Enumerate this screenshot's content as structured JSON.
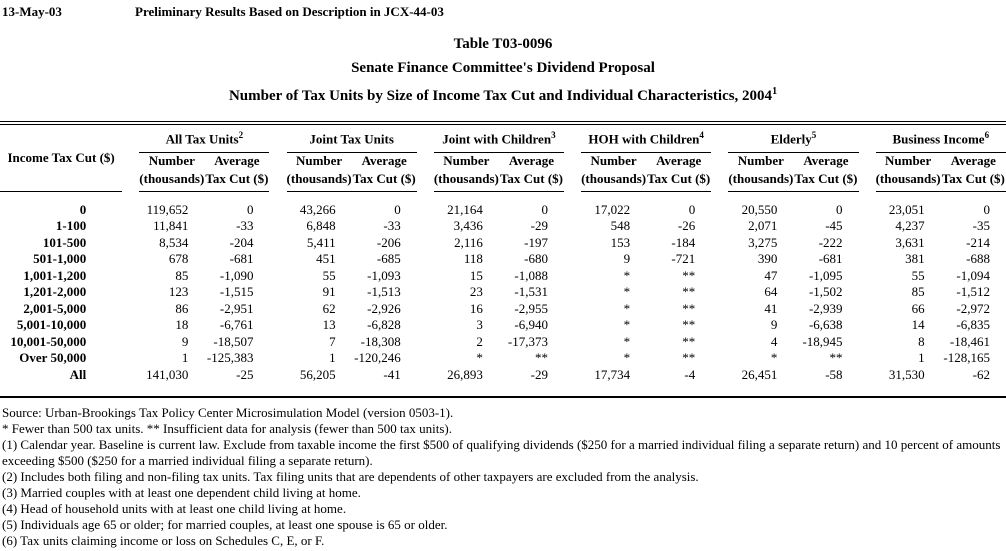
{
  "page": {
    "date": "13-May-03",
    "preliminary": "Preliminary Results Based on Description in JCX-44-03"
  },
  "title": {
    "line1": "Table T03-0096",
    "line2": "Senate Finance Committee's Dividend Proposal",
    "line3": "Number of Tax Units by Size of Income Tax Cut and Individual Characteristics, 2004",
    "line3_sup": "1"
  },
  "table": {
    "row_header": "Income Tax Cut ($)",
    "col_sub1": [
      "Number",
      "Average"
    ],
    "col_sub2": [
      "(thousands)",
      "Tax Cut ($)"
    ],
    "groups": [
      {
        "label": "All Tax Units",
        "sup": "2"
      },
      {
        "label": "Joint Tax Units",
        "sup": ""
      },
      {
        "label": "Joint with Children",
        "sup": "3"
      },
      {
        "label": "HOH with Children",
        "sup": "4"
      },
      {
        "label": "Elderly",
        "sup": "5"
      },
      {
        "label": "Business Income",
        "sup": "6"
      }
    ],
    "rows": [
      {
        "label": "0",
        "values": [
          "119,652",
          "0",
          "43,266",
          "0",
          "21,164",
          "0",
          "17,022",
          "0",
          "20,550",
          "0",
          "23,051",
          "0"
        ]
      },
      {
        "label": "1-100",
        "values": [
          "11,841",
          "-33",
          "6,848",
          "-33",
          "3,436",
          "-29",
          "548",
          "-26",
          "2,071",
          "-45",
          "4,237",
          "-35"
        ]
      },
      {
        "label": "101-500",
        "values": [
          "8,534",
          "-204",
          "5,411",
          "-206",
          "2,116",
          "-197",
          "153",
          "-184",
          "3,275",
          "-222",
          "3,631",
          "-214"
        ]
      },
      {
        "label": "501-1,000",
        "values": [
          "678",
          "-681",
          "451",
          "-685",
          "118",
          "-680",
          "9",
          "-721",
          "390",
          "-681",
          "381",
          "-688"
        ]
      },
      {
        "label": "1,001-1,200",
        "values": [
          "85",
          "-1,090",
          "55",
          "-1,093",
          "15",
          "-1,088",
          "*",
          "**",
          "47",
          "-1,095",
          "55",
          "-1,094"
        ]
      },
      {
        "label": "1,201-2,000",
        "values": [
          "123",
          "-1,515",
          "91",
          "-1,513",
          "23",
          "-1,531",
          "*",
          "**",
          "64",
          "-1,502",
          "85",
          "-1,512"
        ]
      },
      {
        "label": "2,001-5,000",
        "values": [
          "86",
          "-2,951",
          "62",
          "-2,926",
          "16",
          "-2,955",
          "*",
          "**",
          "41",
          "-2,939",
          "66",
          "-2,972"
        ]
      },
      {
        "label": "5,001-10,000",
        "values": [
          "18",
          "-6,761",
          "13",
          "-6,828",
          "3",
          "-6,940",
          "*",
          "**",
          "9",
          "-6,638",
          "14",
          "-6,835"
        ]
      },
      {
        "label": "10,001-50,000",
        "values": [
          "9",
          "-18,507",
          "7",
          "-18,308",
          "2",
          "-17,373",
          "*",
          "**",
          "4",
          "-18,945",
          "8",
          "-18,461"
        ]
      },
      {
        "label": "Over 50,000",
        "values": [
          "1",
          "-125,383",
          "1",
          "-120,246",
          "*",
          "**",
          "*",
          "**",
          "*",
          "**",
          "1",
          "-128,165"
        ]
      },
      {
        "label": "All",
        "values": [
          "141,030",
          "-25",
          "56,205",
          "-41",
          "26,893",
          "-29",
          "17,734",
          "-4",
          "26,451",
          "-58",
          "31,530",
          "-62"
        ]
      }
    ]
  },
  "footnotes": [
    "Source: Urban-Brookings Tax Policy Center Microsimulation Model (version 0503-1).",
    "* Fewer than 500 tax units. ** Insufficient data for analysis (fewer than 500 tax units).",
    "(1) Calendar year. Baseline is current law. Exclude from taxable income the first $500 of qualifying dividends ($250 for a married individual filing a separate return) and 10 percent of amounts exceeding $500 ($250 for a married individual filing a separate return).",
    "(2) Includes both filing and non-filing tax units.  Tax filing units that are dependents of other taxpayers are excluded from the analysis.",
    "(3) Married couples with at least one dependent child living at home.",
    "(4) Head of household units with at least one child living at home.",
    "(5) Individuals age 65 or older; for married couples, at least one spouse is 65 or older.",
    "(6) Tax units claiming income or loss on Schedules C, E, or F."
  ]
}
